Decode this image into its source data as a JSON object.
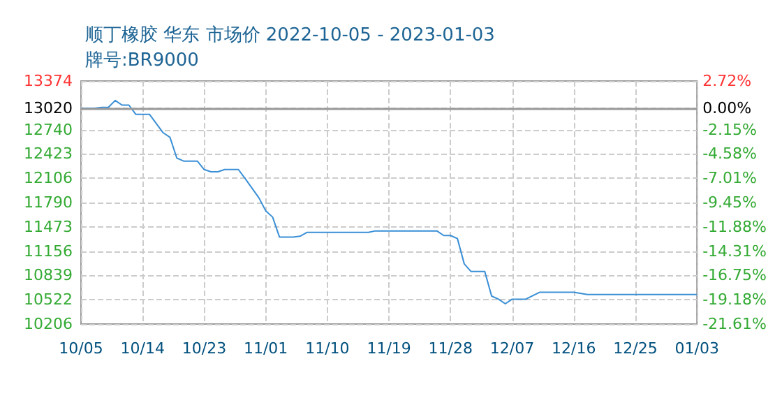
{
  "chart_data": {
    "type": "line",
    "title": "顺丁橡胶 华东 市场价 2022-10-05 - 2023-01-03",
    "subtitle": "牌号:BR9000",
    "x": [
      "2022-10-05",
      "2022-10-07",
      "2022-10-08",
      "2022-10-09",
      "2022-10-10",
      "2022-10-11",
      "2022-10-12",
      "2022-10-13",
      "2022-10-15",
      "2022-10-17",
      "2022-10-18",
      "2022-10-19",
      "2022-10-20",
      "2022-10-22",
      "2022-10-23",
      "2022-10-24",
      "2022-10-25",
      "2022-10-26",
      "2022-10-28",
      "2022-10-29",
      "2022-10-31",
      "2022-11-01",
      "2022-11-02",
      "2022-11-03",
      "2022-11-05",
      "2022-11-06",
      "2022-11-07",
      "2022-11-16",
      "2022-11-17",
      "2022-11-26",
      "2022-11-27",
      "2022-11-28",
      "2022-11-29",
      "2022-11-30",
      "2022-12-01",
      "2022-12-03",
      "2022-12-04",
      "2022-12-05",
      "2022-12-06",
      "2022-12-07",
      "2022-12-09",
      "2022-12-11",
      "2022-12-16",
      "2022-12-18",
      "2023-01-03"
    ],
    "series": [
      {
        "color": "#3a8fd6",
        "values": [
          13020,
          13020,
          13030,
          13030,
          13120,
          13060,
          13060,
          12940,
          12940,
          12700,
          12640,
          12370,
          12330,
          12330,
          12220,
          12190,
          12190,
          12220,
          12220,
          12100,
          11850,
          11680,
          11600,
          11340,
          11340,
          11350,
          11400,
          11400,
          11420,
          11420,
          11360,
          11360,
          11320,
          10990,
          10890,
          10890,
          10570,
          10530,
          10470,
          10530,
          10530,
          10620,
          10620,
          10590,
          10590
        ]
      }
    ],
    "xlim": [
      "2022-10-05",
      "2023-01-03"
    ],
    "xticks": [
      {
        "value": "2022-10-05",
        "label": "10/05"
      },
      {
        "value": "2022-10-14",
        "label": "10/14"
      },
      {
        "value": "2022-10-23",
        "label": "10/23"
      },
      {
        "value": "2022-11-01",
        "label": "11/01"
      },
      {
        "value": "2022-11-10",
        "label": "11/10"
      },
      {
        "value": "2022-11-19",
        "label": "11/19"
      },
      {
        "value": "2022-11-28",
        "label": "11/28"
      },
      {
        "value": "2022-12-07",
        "label": "12/07"
      },
      {
        "value": "2022-12-16",
        "label": "12/16"
      },
      {
        "value": "2022-12-25",
        "label": "12/25"
      },
      {
        "value": "2023-01-03",
        "label": "01/03"
      }
    ],
    "ylim": [
      10206,
      13374
    ],
    "yticks": [
      10206,
      10522,
      10839,
      11156,
      11473,
      11790,
      12106,
      12423,
      12740,
      13020,
      13374
    ],
    "y2lim": [
      -21.61,
      2.72
    ],
    "y2ticks": [
      {
        "value": -21.61,
        "label": "-21.61%"
      },
      {
        "value": -19.18,
        "label": "-19.18%"
      },
      {
        "value": -16.75,
        "label": "-16.75%"
      },
      {
        "value": -14.31,
        "label": "-14.31%"
      },
      {
        "value": -11.88,
        "label": "-11.88%"
      },
      {
        "value": -9.45,
        "label": "-9.45%"
      },
      {
        "value": -7.01,
        "label": "-7.01%"
      },
      {
        "value": -4.58,
        "label": "-4.58%"
      },
      {
        "value": -2.15,
        "label": "-2.15%"
      },
      {
        "value": 0,
        "label": "0.00%"
      },
      {
        "value": 2.72,
        "label": "2.72%"
      }
    ],
    "ref_lines": [
      {
        "axis": "y",
        "value": 13020,
        "color": "#999999"
      }
    ],
    "grid": true,
    "marker": "none",
    "line_style": "solid"
  }
}
